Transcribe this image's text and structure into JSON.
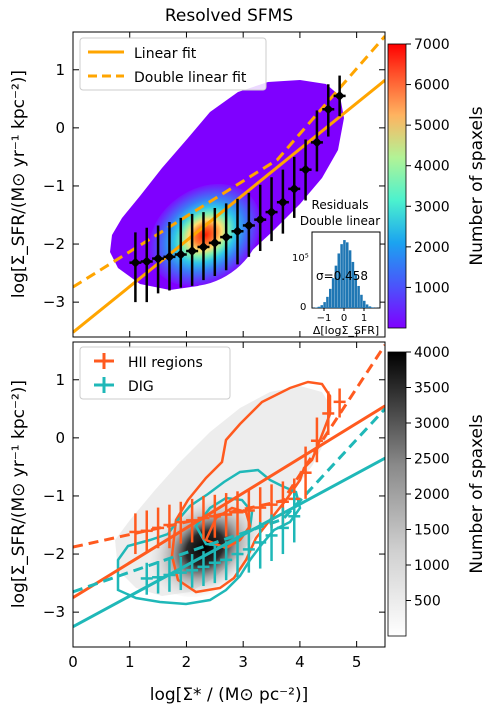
{
  "chart_data": [
    {
      "type": "heatmap",
      "title": "Resolved SFMS",
      "xlabel": "",
      "ylabel": "log[Σ_SFR/(M⊙ yr⁻¹ kpc⁻²)]",
      "xlim": [
        0,
        5.5
      ],
      "ylim": [
        -3.6,
        1.65
      ],
      "x_ticks": [
        0,
        1,
        2,
        3,
        4,
        5
      ],
      "y_ticks": [
        -3,
        -2,
        -1,
        0,
        1
      ],
      "y_tick_labels": [
        "−3",
        "−2",
        "−1",
        "0",
        "1"
      ],
      "legend_position": "top-left",
      "series": [
        {
          "name": "Linear fit",
          "style": "solid",
          "color": "#ffa500",
          "x": [
            0,
            5.5
          ],
          "y": [
            -3.52,
            0.82
          ]
        },
        {
          "name": "Double linear fit",
          "style": "dashed",
          "color": "#ffa500",
          "x": [
            0,
            3.6,
            5.5
          ],
          "y": [
            -2.74,
            -0.55,
            1.58
          ]
        }
      ],
      "binned_medians": {
        "color": "#000000",
        "x": [
          1.1,
          1.3,
          1.5,
          1.7,
          1.9,
          2.1,
          2.3,
          2.5,
          2.7,
          2.9,
          3.1,
          3.3,
          3.5,
          3.7,
          3.9,
          4.1,
          4.3,
          4.5,
          4.7
        ],
        "y": [
          -2.32,
          -2.3,
          -2.25,
          -2.22,
          -2.18,
          -2.12,
          -2.05,
          -1.98,
          -1.88,
          -1.78,
          -1.68,
          -1.58,
          -1.45,
          -1.28,
          -1.05,
          -0.72,
          -0.25,
          0.32,
          0.55
        ],
        "y_lo": [
          -3.0,
          -3.0,
          -2.85,
          -2.8,
          -2.75,
          -2.72,
          -2.62,
          -2.55,
          -2.45,
          -2.35,
          -2.22,
          -2.12,
          -1.95,
          -1.82,
          -1.55,
          -1.25,
          -0.75,
          -0.15,
          0.2
        ],
        "y_hi": [
          -1.8,
          -1.72,
          -1.68,
          -1.62,
          -1.55,
          -1.48,
          -1.45,
          -1.38,
          -1.3,
          -1.22,
          -1.12,
          -0.98,
          -0.85,
          -0.72,
          -0.5,
          -0.2,
          0.3,
          0.75,
          0.9
        ]
      },
      "colorbar": {
        "label": "Number of spaxels",
        "colormap": "rainbow",
        "range": [
          0,
          7000
        ],
        "ticks": [
          1000,
          2000,
          3000,
          4000,
          5000,
          6000,
          7000
        ]
      },
      "inset": {
        "title_line1": "Residuals",
        "title_line2": "Double linear",
        "xlabel": "Δ[logΣ_SFR]",
        "y_tick_label": "10⁵",
        "y_zero_label": "0",
        "x_ticks": [
          -1,
          0,
          1
        ],
        "x_tick_labels": [
          "−1",
          "0",
          "1"
        ],
        "sigma_label": "σ=0.458",
        "color": "#1f77b4"
      }
    },
    {
      "type": "heatmap",
      "title": "",
      "xlabel": "log[Σ* / (M⊙ pc⁻²)]",
      "ylabel": "log[Σ_SFR/(M⊙ yr⁻¹ kpc⁻²)]",
      "xlim": [
        0,
        5.5
      ],
      "ylim": [
        -3.6,
        1.65
      ],
      "x_ticks": [
        0,
        1,
        2,
        3,
        4,
        5
      ],
      "y_ticks": [
        -3,
        -2,
        -1,
        0,
        1
      ],
      "y_tick_labels": [
        "−3",
        "−2",
        "−1",
        "0",
        "1"
      ],
      "legend_position": "top-left",
      "series": [
        {
          "name": "HII regions",
          "color": "#ff5a1f",
          "x": [
            1.1,
            1.3,
            1.5,
            1.7,
            1.9,
            2.1,
            2.3,
            2.5,
            2.7,
            2.9,
            3.1,
            3.3,
            3.5,
            3.7,
            3.9,
            4.1,
            4.3,
            4.5,
            4.7
          ],
          "y": [
            -1.62,
            -1.6,
            -1.55,
            -1.5,
            -1.45,
            -1.42,
            -1.38,
            -1.35,
            -1.32,
            -1.28,
            -1.25,
            -1.2,
            -1.15,
            -1.1,
            -1.05,
            -0.6,
            -0.05,
            0.42,
            0.62
          ],
          "y_lo": [
            -2.0,
            -1.98,
            -1.9,
            -1.9,
            -1.82,
            -1.8,
            -1.75,
            -1.72,
            -1.7,
            -1.68,
            -1.62,
            -1.6,
            -1.55,
            -1.5,
            -1.45,
            -1.05,
            -0.42,
            0.05,
            0.35
          ],
          "y_hi": [
            -1.3,
            -1.25,
            -1.2,
            -1.15,
            -1.1,
            -1.05,
            -1.0,
            -0.98,
            -0.95,
            -0.92,
            -0.88,
            -0.85,
            -0.8,
            -0.75,
            -0.7,
            -0.15,
            0.35,
            0.8,
            0.85
          ]
        },
        {
          "name": "DIG",
          "color": "#1fb8b8",
          "x": [
            1.3,
            1.5,
            1.7,
            1.9,
            2.1,
            2.3,
            2.5,
            2.7,
            2.9,
            3.1,
            3.3,
            3.5,
            3.7,
            3.9
          ],
          "y": [
            -2.42,
            -2.4,
            -2.36,
            -2.32,
            -2.28,
            -2.22,
            -2.15,
            -2.1,
            -2.0,
            -1.92,
            -1.8,
            -1.68,
            -1.55,
            -1.35
          ],
          "y_lo": [
            -2.7,
            -2.68,
            -2.65,
            -2.62,
            -2.58,
            -2.55,
            -2.5,
            -2.45,
            -2.4,
            -2.32,
            -2.25,
            -2.12,
            -2.0,
            -1.8
          ],
          "y_hi": [
            -2.15,
            -2.12,
            -2.1,
            -2.05,
            -2.0,
            -1.95,
            -1.85,
            -1.78,
            -1.68,
            -1.58,
            -1.45,
            -1.32,
            -1.2,
            -0.95
          ]
        },
        {
          "name": "",
          "style": "solid",
          "color": "#ff5a1f",
          "x": [
            0,
            5.5
          ],
          "y": [
            -2.75,
            0.55
          ]
        },
        {
          "name": "",
          "style": "dashed",
          "color": "#ff5a1f",
          "x": [
            0,
            3.7,
            5.5
          ],
          "y": [
            -1.88,
            -1.08,
            1.6
          ]
        },
        {
          "name": "",
          "style": "solid",
          "color": "#1fb8b8",
          "x": [
            0,
            5.5
          ],
          "y": [
            -3.25,
            -0.35
          ]
        },
        {
          "name": "",
          "style": "dashed",
          "color": "#1fb8b8",
          "x": [
            0,
            3.7,
            5.5
          ],
          "y": [
            -2.65,
            -1.4,
            0.5
          ]
        }
      ],
      "colorbar": {
        "label": "Number of spaxels",
        "colormap": "Greys",
        "range": [
          0,
          4000
        ],
        "ticks": [
          500,
          1000,
          1500,
          2000,
          2500,
          3000,
          3500,
          4000
        ]
      }
    }
  ]
}
